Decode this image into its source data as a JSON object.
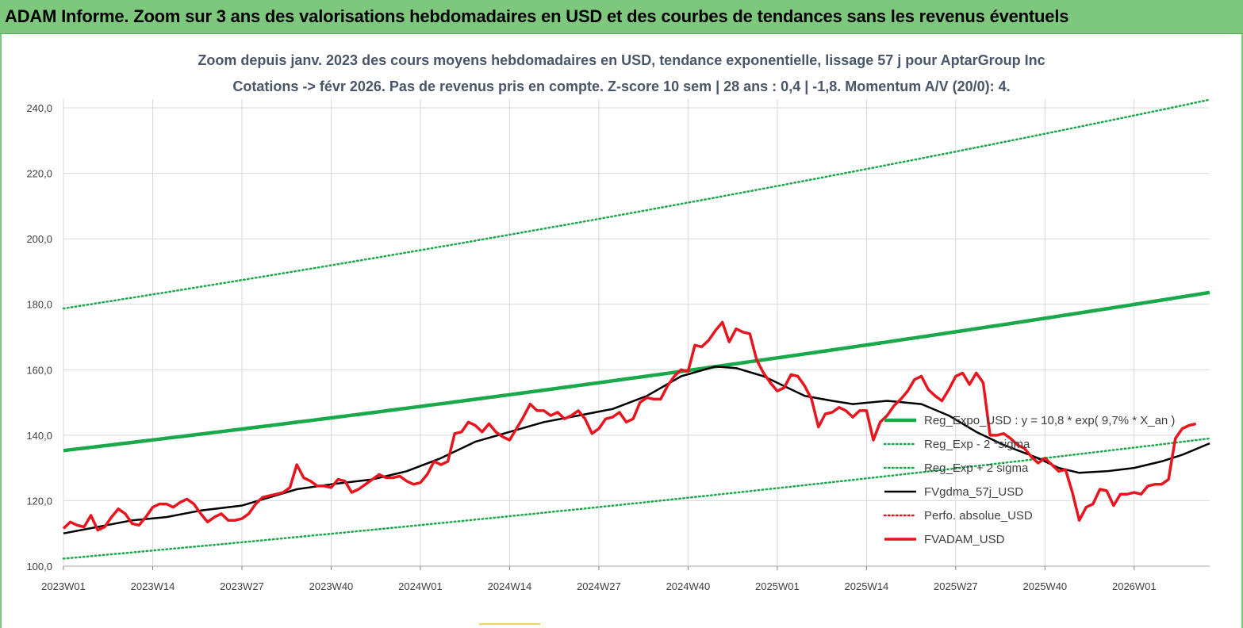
{
  "banner": {
    "title": "ADAM Informe. Zoom sur 3 ans des valorisations hebdomadaires en USD et des courbes de tendances sans les revenus éventuels"
  },
  "colors": {
    "banner_bg": "#7dc87d",
    "trend_green": "#19a84a",
    "price_red": "#e8141e",
    "fv_black": "#000000",
    "grid": "#d9d9d9"
  },
  "chart_data": {
    "type": "line",
    "title": "Zoom depuis janv. 2023 des cours moyens hebdomadaires en USD, tendance exponentielle, lissage 57 j pour AptarGroup Inc",
    "subtitle": "Cotations -> févr 2026. Pas de revenus pris en compte. Z-score 10 sem  | 28 ans : 0,4 | -1,8. Momentum A/V (20/0): 4.",
    "xlabel": "",
    "ylabel": "",
    "x_tick_labels": [
      "2023W01",
      "2023W14",
      "2023W27",
      "2023W40",
      "2024W01",
      "2024W14",
      "2024W27",
      "2024W40",
      "2025W01",
      "2025W14",
      "2025W27",
      "2025W40",
      "2026W01"
    ],
    "x_tick_index": [
      0,
      13,
      26,
      39,
      52,
      65,
      78,
      91,
      104,
      117,
      130,
      143,
      156
    ],
    "ylim": [
      100,
      245
    ],
    "y_tick_labels": [
      "100,0",
      "120,0",
      "140,0",
      "160,0",
      "180,0",
      "200,0",
      "220,0",
      "240,0"
    ],
    "y_tick_values": [
      100,
      120,
      140,
      160,
      180,
      200,
      220,
      240
    ],
    "grid": "vertical and horizontal",
    "legend_position": "lower-right inside plot",
    "n_weeks": 167,
    "series": [
      {
        "name": "Reg_Expo_USD : y = 10,8 * exp( 9,7% *  X_an )",
        "style": "solid-thick",
        "color": "#19a84a",
        "points": [
          [
            0,
            135.3
          ],
          [
            167,
            183.6
          ]
        ]
      },
      {
        "name": "Reg_Exp - 2 *sigma",
        "style": "dotted",
        "color": "#19a84a",
        "points": [
          [
            0,
            102.3
          ],
          [
            167,
            139.0
          ]
        ]
      },
      {
        "name": "Reg_Exp + 2 sigma",
        "style": "dotted",
        "color": "#19a84a",
        "points": [
          [
            0,
            178.7
          ],
          [
            167,
            242.5
          ]
        ]
      },
      {
        "name": "FVgdma_57j_USD",
        "style": "solid",
        "color": "#000000",
        "points": [
          [
            0,
            110
          ],
          [
            5,
            112
          ],
          [
            10,
            114
          ],
          [
            15,
            115
          ],
          [
            20,
            117
          ],
          [
            26,
            118.5
          ],
          [
            30,
            121
          ],
          [
            34,
            123.5
          ],
          [
            39,
            125
          ],
          [
            45,
            126.5
          ],
          [
            50,
            129
          ],
          [
            55,
            133
          ],
          [
            60,
            138
          ],
          [
            65,
            141
          ],
          [
            70,
            144
          ],
          [
            75,
            146
          ],
          [
            80,
            148
          ],
          [
            85,
            152
          ],
          [
            90,
            158
          ],
          [
            95,
            161
          ],
          [
            98,
            160.5
          ],
          [
            102,
            158
          ],
          [
            105,
            155
          ],
          [
            108,
            152
          ],
          [
            112,
            150.5
          ],
          [
            115,
            149.5
          ],
          [
            120,
            150.5
          ],
          [
            125,
            149.5
          ],
          [
            129,
            146
          ],
          [
            133,
            141
          ],
          [
            137,
            137
          ],
          [
            142,
            133
          ],
          [
            145,
            130
          ],
          [
            148,
            128.5
          ],
          [
            152,
            129
          ],
          [
            156,
            130
          ],
          [
            160,
            132
          ],
          [
            163,
            134
          ],
          [
            167,
            137.5
          ]
        ]
      },
      {
        "name": "Perfo. absolue_USD",
        "style": "dotted",
        "color": "#e8141e",
        "points": []
      },
      {
        "name": "FVADAM_USD",
        "style": "solid-thick",
        "color": "#e8141e",
        "points": [
          [
            0,
            111.5
          ],
          [
            1,
            113.5
          ],
          [
            2,
            112.5
          ],
          [
            3,
            112
          ],
          [
            4,
            115.5
          ],
          [
            5,
            111
          ],
          [
            6,
            112
          ],
          [
            7,
            115
          ],
          [
            8,
            117.5
          ],
          [
            9,
            116
          ],
          [
            10,
            113
          ],
          [
            11,
            112.5
          ],
          [
            12,
            115
          ],
          [
            13,
            118
          ],
          [
            14,
            119
          ],
          [
            15,
            119
          ],
          [
            16,
            118
          ],
          [
            17,
            119.5
          ],
          [
            18,
            120.5
          ],
          [
            19,
            119
          ],
          [
            20,
            116
          ],
          [
            21,
            113.5
          ],
          [
            22,
            115
          ],
          [
            23,
            116
          ],
          [
            24,
            114
          ],
          [
            25,
            114
          ],
          [
            26,
            114.5
          ],
          [
            27,
            116
          ],
          [
            28,
            119
          ],
          [
            29,
            121
          ],
          [
            30,
            121.5
          ],
          [
            31,
            122
          ],
          [
            32,
            122.5
          ],
          [
            33,
            124
          ],
          [
            34,
            131
          ],
          [
            35,
            127
          ],
          [
            36,
            126
          ],
          [
            37,
            124.5
          ],
          [
            38,
            124.5
          ],
          [
            39,
            124
          ],
          [
            40,
            126.5
          ],
          [
            41,
            126
          ],
          [
            42,
            122.5
          ],
          [
            43,
            123.5
          ],
          [
            44,
            125
          ],
          [
            45,
            126.5
          ],
          [
            46,
            128
          ],
          [
            47,
            127
          ],
          [
            48,
            127
          ],
          [
            49,
            127.5
          ],
          [
            50,
            126
          ],
          [
            51,
            125
          ],
          [
            52,
            125.5
          ],
          [
            53,
            128
          ],
          [
            54,
            132
          ],
          [
            55,
            131
          ],
          [
            56,
            132
          ],
          [
            57,
            140.5
          ],
          [
            58,
            141
          ],
          [
            59,
            144
          ],
          [
            60,
            143
          ],
          [
            61,
            141
          ],
          [
            62,
            143.5
          ],
          [
            63,
            141
          ],
          [
            64,
            139.5
          ],
          [
            65,
            138.5
          ],
          [
            66,
            142
          ],
          [
            67,
            145.5
          ],
          [
            68,
            149.5
          ],
          [
            69,
            147.5
          ],
          [
            70,
            147.5
          ],
          [
            71,
            146
          ],
          [
            72,
            147
          ],
          [
            73,
            145
          ],
          [
            74,
            146
          ],
          [
            75,
            147.5
          ],
          [
            76,
            145
          ],
          [
            77,
            140.5
          ],
          [
            78,
            142
          ],
          [
            79,
            145
          ],
          [
            80,
            145.5
          ],
          [
            81,
            147
          ],
          [
            82,
            144
          ],
          [
            83,
            145
          ],
          [
            84,
            150
          ],
          [
            85,
            151.5
          ],
          [
            86,
            151
          ],
          [
            87,
            151
          ],
          [
            88,
            155
          ],
          [
            89,
            158
          ],
          [
            90,
            160
          ],
          [
            91,
            159.5
          ],
          [
            92,
            167.5
          ],
          [
            93,
            167
          ],
          [
            94,
            169
          ],
          [
            95,
            172
          ],
          [
            96,
            174.5
          ],
          [
            97,
            168.5
          ],
          [
            98,
            172.5
          ],
          [
            99,
            171.5
          ],
          [
            100,
            171
          ],
          [
            101,
            163
          ],
          [
            102,
            159
          ],
          [
            103,
            156
          ],
          [
            104,
            153.5
          ],
          [
            105,
            154.5
          ],
          [
            106,
            158.5
          ],
          [
            107,
            158
          ],
          [
            108,
            155
          ],
          [
            109,
            151
          ],
          [
            110,
            142.5
          ],
          [
            111,
            146.5
          ],
          [
            112,
            147
          ],
          [
            113,
            148.5
          ],
          [
            114,
            147.5
          ],
          [
            115,
            145.5
          ],
          [
            116,
            147.5
          ],
          [
            117,
            147.5
          ],
          [
            118,
            138.5
          ],
          [
            119,
            144
          ],
          [
            120,
            146
          ],
          [
            121,
            149
          ],
          [
            122,
            151
          ],
          [
            123,
            153.5
          ],
          [
            124,
            157
          ],
          [
            125,
            158
          ],
          [
            126,
            154
          ],
          [
            127,
            152
          ],
          [
            128,
            150.5
          ],
          [
            129,
            154
          ],
          [
            130,
            158
          ],
          [
            131,
            159
          ],
          [
            132,
            155.5
          ],
          [
            133,
            159
          ],
          [
            134,
            156
          ],
          [
            135,
            140
          ],
          [
            136,
            140
          ],
          [
            137,
            140.5
          ],
          [
            138,
            139
          ],
          [
            139,
            137
          ],
          [
            140,
            136
          ],
          [
            141,
            133.5
          ],
          [
            142,
            131.5
          ],
          [
            143,
            133
          ],
          [
            144,
            131
          ],
          [
            145,
            129
          ],
          [
            146,
            129.5
          ],
          [
            147,
            122.5
          ],
          [
            148,
            114
          ],
          [
            149,
            118
          ],
          [
            150,
            119
          ],
          [
            151,
            123.5
          ],
          [
            152,
            123
          ],
          [
            153,
            118.5
          ],
          [
            154,
            122
          ],
          [
            155,
            122
          ],
          [
            156,
            122.5
          ],
          [
            157,
            122
          ],
          [
            158,
            124.5
          ],
          [
            159,
            125
          ],
          [
            160,
            125
          ],
          [
            161,
            126.5
          ],
          [
            162,
            139
          ],
          [
            163,
            142
          ],
          [
            164,
            143
          ],
          [
            165,
            143.5
          ]
        ]
      }
    ]
  }
}
